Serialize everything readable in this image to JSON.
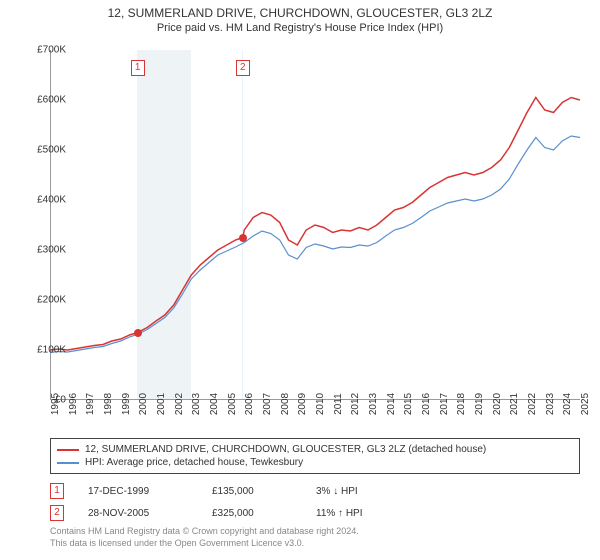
{
  "title": "12, SUMMERLAND DRIVE, CHURCHDOWN, GLOUCESTER, GL3 2LZ",
  "subtitle": "Price paid vs. HM Land Registry's House Price Index (HPI)",
  "chart": {
    "type": "line",
    "background_color": "#ffffff",
    "grid_color": "#eeeeee",
    "axis_color": "#999999",
    "label_fontsize": 10,
    "title_fontsize": 12,
    "x_start": 1995,
    "x_end": 2025,
    "xtick_step": 1,
    "ylim": [
      0,
      700000
    ],
    "ytick_step": 100000,
    "y_prefix": "£",
    "y_suffix": "K",
    "shaded_regions": [
      {
        "start": 1999.9,
        "end": 2000.0,
        "color": "#edf3fb"
      },
      {
        "start": 2000.0,
        "end": 2003.0,
        "color": "#eef3f5"
      },
      {
        "start": 2005.85,
        "end": 2005.95,
        "color": "#edf3fb"
      }
    ],
    "markers": [
      {
        "id": "1",
        "x": 1999.96,
        "box_y": 60
      },
      {
        "id": "2",
        "x": 2005.91,
        "box_y": 60
      }
    ],
    "points": [
      {
        "x": 1999.96,
        "y": 135000,
        "color": "#d93434"
      },
      {
        "x": 2005.91,
        "y": 325000,
        "color": "#d93434"
      }
    ],
    "series": [
      {
        "name": "12, SUMMERLAND DRIVE, CHURCHDOWN, GLOUCESTER, GL3 2LZ (detached house)",
        "color": "#d93434",
        "line_width": 1.5,
        "data": [
          [
            1995,
            100000
          ],
          [
            1995.5,
            102000
          ],
          [
            1996,
            100000
          ],
          [
            1996.5,
            103000
          ],
          [
            1997,
            106000
          ],
          [
            1997.5,
            109000
          ],
          [
            1998,
            111000
          ],
          [
            1998.5,
            118000
          ],
          [
            1999,
            122000
          ],
          [
            1999.5,
            130000
          ],
          [
            1999.96,
            135000
          ],
          [
            2000.5,
            145000
          ],
          [
            2001,
            158000
          ],
          [
            2001.5,
            170000
          ],
          [
            2002,
            190000
          ],
          [
            2002.5,
            220000
          ],
          [
            2003,
            250000
          ],
          [
            2003.5,
            270000
          ],
          [
            2004,
            285000
          ],
          [
            2004.5,
            300000
          ],
          [
            2005,
            310000
          ],
          [
            2005.5,
            320000
          ],
          [
            2005.91,
            325000
          ],
          [
            2006,
            340000
          ],
          [
            2006.5,
            365000
          ],
          [
            2007,
            375000
          ],
          [
            2007.5,
            370000
          ],
          [
            2008,
            355000
          ],
          [
            2008.5,
            320000
          ],
          [
            2009,
            310000
          ],
          [
            2009.5,
            340000
          ],
          [
            2010,
            350000
          ],
          [
            2010.5,
            345000
          ],
          [
            2011,
            335000
          ],
          [
            2011.5,
            340000
          ],
          [
            2012,
            338000
          ],
          [
            2012.5,
            345000
          ],
          [
            2013,
            340000
          ],
          [
            2013.5,
            350000
          ],
          [
            2014,
            365000
          ],
          [
            2014.5,
            380000
          ],
          [
            2015,
            385000
          ],
          [
            2015.5,
            395000
          ],
          [
            2016,
            410000
          ],
          [
            2016.5,
            425000
          ],
          [
            2017,
            435000
          ],
          [
            2017.5,
            445000
          ],
          [
            2018,
            450000
          ],
          [
            2018.5,
            455000
          ],
          [
            2019,
            450000
          ],
          [
            2019.5,
            455000
          ],
          [
            2020,
            465000
          ],
          [
            2020.5,
            480000
          ],
          [
            2021,
            505000
          ],
          [
            2021.5,
            540000
          ],
          [
            2022,
            575000
          ],
          [
            2022.5,
            605000
          ],
          [
            2023,
            580000
          ],
          [
            2023.5,
            575000
          ],
          [
            2024,
            595000
          ],
          [
            2024.5,
            605000
          ],
          [
            2025,
            600000
          ]
        ]
      },
      {
        "name": "HPI: Average price, detached house, Tewkesbury",
        "color": "#5a8fcf",
        "line_width": 1.2,
        "data": [
          [
            1995,
            95000
          ],
          [
            1995.5,
            97000
          ],
          [
            1996,
            96000
          ],
          [
            1996.5,
            99000
          ],
          [
            1997,
            102000
          ],
          [
            1997.5,
            105000
          ],
          [
            1998,
            107000
          ],
          [
            1998.5,
            113000
          ],
          [
            1999,
            118000
          ],
          [
            1999.5,
            126000
          ],
          [
            2000,
            132000
          ],
          [
            2000.5,
            141000
          ],
          [
            2001,
            153000
          ],
          [
            2001.5,
            165000
          ],
          [
            2002,
            184000
          ],
          [
            2002.5,
            212000
          ],
          [
            2003,
            242000
          ],
          [
            2003.5,
            260000
          ],
          [
            2004,
            275000
          ],
          [
            2004.5,
            290000
          ],
          [
            2005,
            298000
          ],
          [
            2005.5,
            306000
          ],
          [
            2006,
            315000
          ],
          [
            2006.5,
            328000
          ],
          [
            2007,
            338000
          ],
          [
            2007.5,
            333000
          ],
          [
            2008,
            320000
          ],
          [
            2008.5,
            290000
          ],
          [
            2009,
            282000
          ],
          [
            2009.5,
            305000
          ],
          [
            2010,
            312000
          ],
          [
            2010.5,
            308000
          ],
          [
            2011,
            302000
          ],
          [
            2011.5,
            306000
          ],
          [
            2012,
            305000
          ],
          [
            2012.5,
            310000
          ],
          [
            2013,
            308000
          ],
          [
            2013.5,
            315000
          ],
          [
            2014,
            328000
          ],
          [
            2014.5,
            340000
          ],
          [
            2015,
            345000
          ],
          [
            2015.5,
            353000
          ],
          [
            2016,
            365000
          ],
          [
            2016.5,
            378000
          ],
          [
            2017,
            386000
          ],
          [
            2017.5,
            394000
          ],
          [
            2018,
            398000
          ],
          [
            2018.5,
            402000
          ],
          [
            2019,
            398000
          ],
          [
            2019.5,
            402000
          ],
          [
            2020,
            410000
          ],
          [
            2020.5,
            422000
          ],
          [
            2021,
            442000
          ],
          [
            2021.5,
            472000
          ],
          [
            2022,
            500000
          ],
          [
            2022.5,
            525000
          ],
          [
            2023,
            505000
          ],
          [
            2023.5,
            500000
          ],
          [
            2024,
            518000
          ],
          [
            2024.5,
            528000
          ],
          [
            2025,
            525000
          ]
        ]
      }
    ]
  },
  "legend": {
    "items": [
      {
        "color": "#d93434",
        "label": "12, SUMMERLAND DRIVE, CHURCHDOWN, GLOUCESTER, GL3 2LZ (detached house)"
      },
      {
        "color": "#5a8fcf",
        "label": "HPI: Average price, detached house, Tewkesbury"
      }
    ]
  },
  "notes": [
    {
      "id": "1",
      "date": "17-DEC-1999",
      "price": "£135,000",
      "diff": "3% ↓ HPI"
    },
    {
      "id": "2",
      "date": "28-NOV-2005",
      "price": "£325,000",
      "diff": "11% ↑ HPI"
    }
  ],
  "license_line1": "Contains HM Land Registry data © Crown copyright and database right 2024.",
  "license_line2": "This data is licensed under the Open Government Licence v3.0."
}
